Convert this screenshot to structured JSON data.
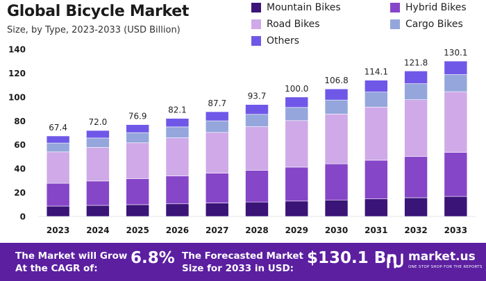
{
  "header": {
    "title": "Global Bicycle Market",
    "subtitle": "Size, by Type, 2023-2033 (USD Billion)"
  },
  "colors": {
    "mountain": "#3a1477",
    "hybrid": "#8646c8",
    "road": "#cfa9e8",
    "cargo": "#94a6db",
    "others": "#6f58e8",
    "footer": "#5b1fa0"
  },
  "chart_data": {
    "type": "bar",
    "stacked": true,
    "title": "Global Bicycle Market",
    "subtitle": "Size, by Type, 2023-2033 (USD Billion)",
    "xlabel": "",
    "ylabel": "",
    "ylim": [
      0,
      140
    ],
    "yticks": [
      0,
      20,
      40,
      60,
      80,
      100,
      120,
      140
    ],
    "grid": false,
    "legend_position": "top-right",
    "categories": [
      "2023",
      "2024",
      "2025",
      "2026",
      "2027",
      "2028",
      "2029",
      "2030",
      "2031",
      "2032",
      "2033"
    ],
    "totals": [
      67.4,
      72.0,
      76.9,
      82.1,
      87.7,
      93.7,
      100.0,
      106.8,
      114.1,
      121.8,
      130.1
    ],
    "total_labels": [
      "67.4",
      "72.0",
      "76.9",
      "82.1",
      "87.7",
      "93.7",
      "100.0",
      "106.8",
      "114.1",
      "121.8",
      "130.1"
    ],
    "series": [
      {
        "name": "Mountain Bikes",
        "values": [
          8.7,
          9.3,
          9.9,
          10.6,
          11.3,
          12.1,
          12.9,
          13.8,
          14.7,
          15.7,
          16.8
        ]
      },
      {
        "name": "Hybrid Bikes",
        "values": [
          19.1,
          20.4,
          21.8,
          23.3,
          24.9,
          26.6,
          28.4,
          30.3,
          32.4,
          34.6,
          36.9
        ]
      },
      {
        "name": "Road Bikes",
        "values": [
          26.3,
          28.1,
          30.0,
          32.0,
          34.2,
          36.5,
          39.0,
          41.7,
          44.5,
          47.5,
          50.8
        ]
      },
      {
        "name": "Cargo Bikes",
        "values": [
          7.4,
          7.9,
          8.5,
          9.1,
          9.7,
          10.3,
          11.0,
          11.7,
          12.6,
          13.4,
          14.3
        ]
      },
      {
        "name": "Others",
        "values": [
          5.9,
          6.3,
          6.7,
          7.1,
          7.6,
          8.2,
          8.7,
          9.3,
          9.9,
          10.6,
          11.3
        ]
      }
    ]
  },
  "footer": {
    "cagr_label": "The Market will Grow At the CAGR of:",
    "cagr_value": "6.8%",
    "forecast_label": "The Forecasted Market Size for 2033 in USD:",
    "forecast_value": "$130.1 Bn",
    "brand": "market.us",
    "brand_tagline": "ONE STOP SHOP FOR THE REPORTS"
  }
}
